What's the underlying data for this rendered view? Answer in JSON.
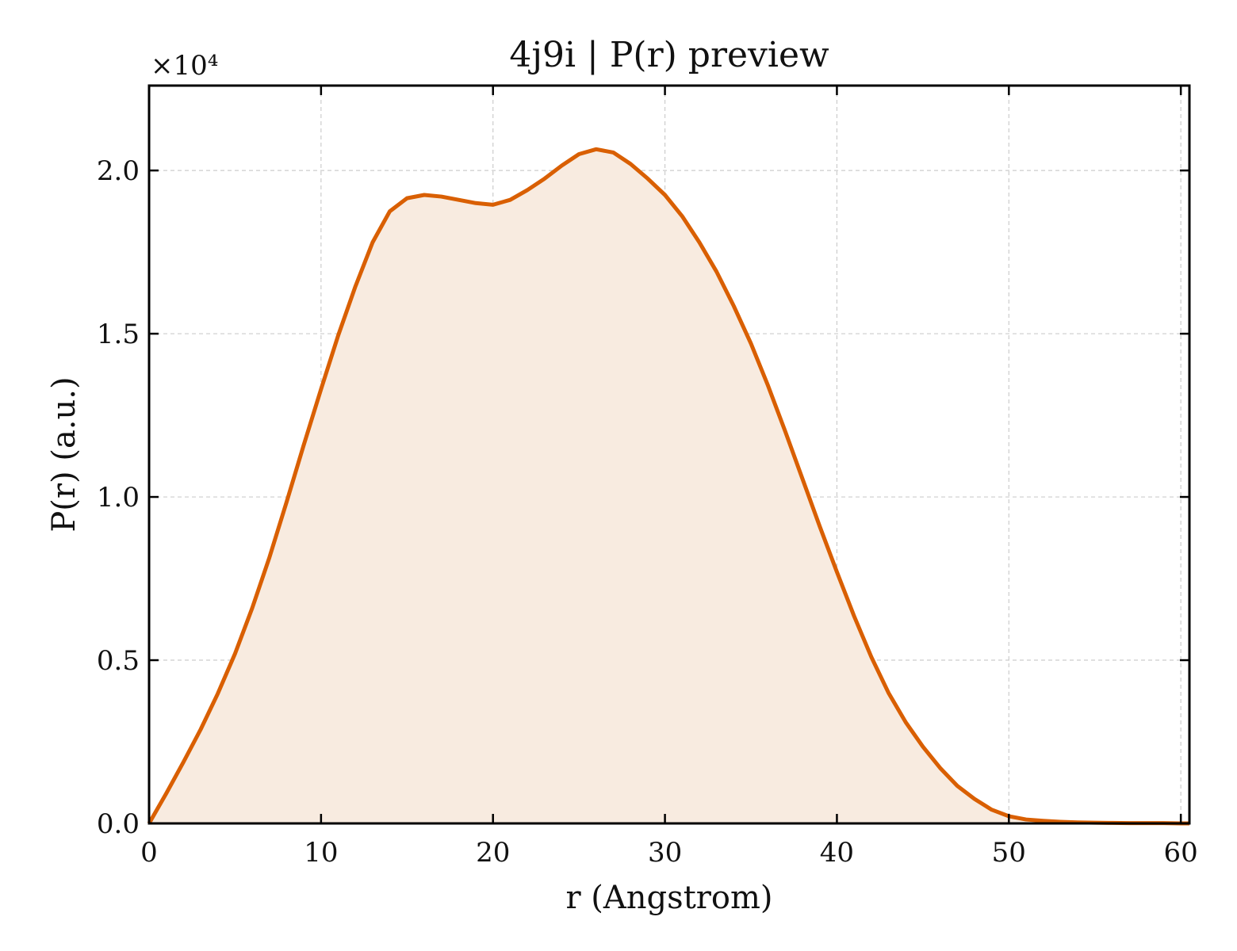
{
  "chart_data": {
    "type": "area",
    "title": "4j9i | P(r) preview",
    "xlabel": "r (Angstrom)",
    "ylabel": "P(r) (a.u.)",
    "y_multiplier_label": "×10⁴",
    "xlim": [
      0,
      60.5
    ],
    "ylim": [
      0,
      22600
    ],
    "xticks": [
      0,
      10,
      20,
      30,
      40,
      50,
      60
    ],
    "xtick_labels": [
      "0",
      "10",
      "20",
      "30",
      "40",
      "50",
      "60"
    ],
    "yticks": [
      0,
      5000,
      10000,
      15000,
      20000
    ],
    "ytick_labels": [
      "0.0",
      "0.5",
      "1.0",
      "1.5",
      "2.0"
    ],
    "grid": true,
    "line_color": "#d95f02",
    "fill_color": "#f8ebe0",
    "series": [
      {
        "x": [
          0,
          1,
          2,
          3,
          4,
          5,
          6,
          7,
          8,
          9,
          10,
          11,
          12,
          13,
          14,
          15,
          16,
          17,
          18,
          19,
          20,
          21,
          22,
          23,
          24,
          25,
          26,
          27,
          28,
          29,
          30,
          31,
          32,
          33,
          34,
          35,
          36,
          37,
          38,
          39,
          40,
          41,
          42,
          43,
          44,
          45,
          46,
          47,
          48,
          49,
          50,
          51,
          52,
          53,
          54,
          55,
          56,
          57,
          58,
          59,
          60,
          60.5
        ],
        "y": [
          0,
          920,
          1880,
          2880,
          3980,
          5200,
          6600,
          8150,
          9850,
          11600,
          13300,
          14950,
          16450,
          17800,
          18750,
          19150,
          19250,
          19200,
          19100,
          19000,
          18950,
          19100,
          19400,
          19750,
          20150,
          20500,
          20650,
          20550,
          20200,
          19750,
          19250,
          18600,
          17800,
          16900,
          15850,
          14700,
          13400,
          12000,
          10550,
          9100,
          7700,
          6350,
          5100,
          4000,
          3100,
          2350,
          1700,
          1150,
          750,
          420,
          220,
          120,
          80,
          50,
          30,
          20,
          15,
          10,
          10,
          10,
          0,
          0
        ]
      }
    ]
  }
}
